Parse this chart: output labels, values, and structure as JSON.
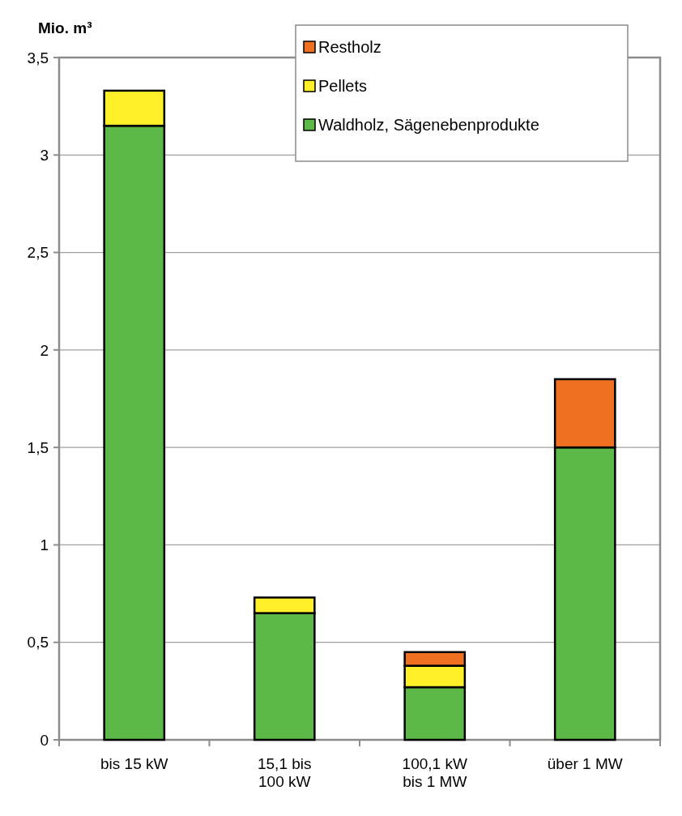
{
  "chart_data": {
    "type": "bar",
    "ylabel": "Mio. m³",
    "stacked": true,
    "categories": [
      "bis 15 kW",
      "15,1 bis 100 kW",
      "100,1 kW bis 1 MW",
      "über 1 MW"
    ],
    "series": [
      {
        "name": "Waldholz, Sägenebenprodukte",
        "color": "#5db947",
        "values": [
          3.15,
          0.65,
          0.27,
          1.5
        ]
      },
      {
        "name": "Pellets",
        "color": "#fff02a",
        "values": [
          0.18,
          0.08,
          0.11,
          null
        ]
      },
      {
        "name": "Restholz",
        "color": "#f07021",
        "values": [
          null,
          null,
          0.07,
          0.35
        ]
      }
    ],
    "ylim": [
      0,
      3.5
    ],
    "yticks": [
      0,
      {
        "value": 0.5,
        "label": "0,5"
      },
      1,
      {
        "value": 1.5,
        "label": "1,5"
      },
      2,
      {
        "value": 2.5,
        "label": "2,5"
      },
      3,
      {
        "value": 3.5,
        "label": "3,5"
      }
    ],
    "grid": "y",
    "legend": "top right"
  }
}
